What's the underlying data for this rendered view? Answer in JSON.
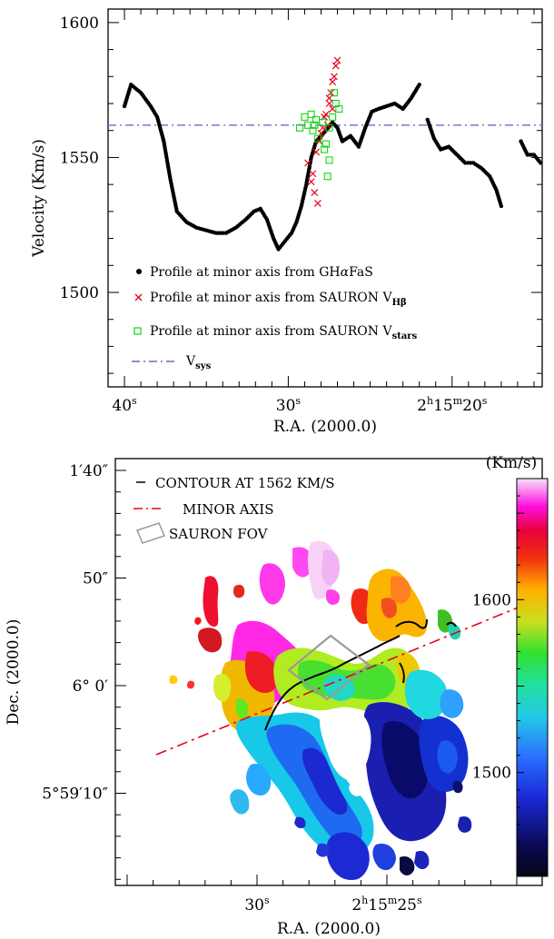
{
  "top_panel": {
    "xlabel": "R.A. (2000.0)",
    "ylabel": "Velocity (Km/s)",
    "legend": [
      {
        "text": "Profile at minor axis from GH",
        "greek": "α",
        "tail": "FaS",
        "color": "#000000",
        "marker": "dot",
        "sub": ""
      },
      {
        "text": "Profile at minor axis from SAURON V",
        "greek": "",
        "tail": "",
        "color": "#e8001c",
        "marker": "x",
        "sub": "Hβ"
      },
      {
        "text": "Profile at minor axis from SAURON V",
        "greek": "",
        "tail": "",
        "color": "#16d616",
        "marker": "square",
        "sub": "stars"
      },
      {
        "text": "V",
        "greek": "",
        "tail": "",
        "color": "#2222cc",
        "marker": "dashdot",
        "sub": "sys"
      }
    ]
  },
  "bottom_panel": {
    "xlabel": "R.A. (2000.0)",
    "ylabel": "Dec. (2000.0)",
    "legend": [
      {
        "text": "CONTOUR AT 1562 KM/S",
        "color": "#000000",
        "marker": "line"
      },
      {
        "text": "MINOR AXIS",
        "color": "#e8001c",
        "marker": "dashdot"
      },
      {
        "text": "SAURON FOV",
        "color": "#999999",
        "marker": "box"
      }
    ],
    "colorbar": {
      "title": "(Km/s)",
      "ticks": [
        "1600",
        "1500"
      ]
    },
    "xticks": [
      {
        "pos": 30,
        "label": "30",
        "sup": "s",
        "prefix": ""
      },
      {
        "pos": 25,
        "label": "25",
        "sup": "s",
        "prefix": "2h15m"
      }
    ],
    "yticks": [
      {
        "pos": 100,
        "label": "1′40″"
      },
      {
        "pos": 90,
        "label": "50″"
      },
      {
        "pos": 80,
        "label": "6° 0′"
      },
      {
        "pos": 70,
        "label": "5°59′10″"
      }
    ]
  },
  "chart_data": [
    {
      "type": "scatter",
      "title": "",
      "xlabel": "R.A. (2000.0)",
      "ylabel": "Velocity (Km/s)",
      "xlim": [
        41.0,
        14.5
      ],
      "ylim": [
        1465,
        1605
      ],
      "x_reversed": true,
      "xticks": [
        {
          "value": 40,
          "label": "40",
          "sup": "s",
          "prefix": ""
        },
        {
          "value": 30,
          "label": "30",
          "sup": "s",
          "prefix": ""
        },
        {
          "value": 20,
          "label": "20",
          "sup": "s",
          "prefix": "2h15m"
        }
      ],
      "yticks": [
        1500,
        1550,
        1600
      ],
      "vsys": 1562,
      "series": [
        {
          "name": "Profile at minor axis from GHαFaS",
          "color": "#000000",
          "marker": "dot",
          "segments": [
            [
              [
                40.0,
                1569
              ],
              [
                39.6,
                1577
              ],
              [
                39.0,
                1574
              ],
              [
                38.4,
                1569
              ],
              [
                38.0,
                1565
              ],
              [
                37.6,
                1556
              ],
              [
                37.2,
                1542
              ],
              [
                36.8,
                1530
              ],
              [
                36.2,
                1526
              ],
              [
                35.6,
                1524
              ],
              [
                35.0,
                1523
              ],
              [
                34.4,
                1522
              ],
              [
                33.8,
                1522
              ],
              [
                33.2,
                1524
              ],
              [
                32.6,
                1527
              ],
              [
                32.1,
                1530
              ],
              [
                31.7,
                1531
              ],
              [
                31.3,
                1527
              ],
              [
                30.9,
                1520
              ],
              [
                30.6,
                1516
              ],
              [
                30.2,
                1519
              ],
              [
                29.8,
                1522
              ],
              [
                29.5,
                1526
              ],
              [
                29.2,
                1532
              ],
              [
                28.9,
                1540
              ],
              [
                28.6,
                1550
              ],
              [
                28.3,
                1556
              ],
              [
                28.0,
                1558
              ],
              [
                27.7,
                1560
              ],
              [
                27.3,
                1563
              ],
              [
                27.0,
                1561
              ],
              [
                26.7,
                1556
              ],
              [
                26.2,
                1558
              ],
              [
                25.7,
                1554
              ],
              [
                25.3,
                1561
              ],
              [
                24.9,
                1567
              ],
              [
                24.5,
                1568
              ],
              [
                24.0,
                1569
              ],
              [
                23.5,
                1570
              ],
              [
                23.0,
                1568
              ],
              [
                22.5,
                1572
              ],
              [
                22.0,
                1577
              ]
            ],
            [
              [
                21.5,
                1564
              ],
              [
                21.1,
                1557
              ],
              [
                20.7,
                1553
              ],
              [
                20.2,
                1554
              ],
              [
                19.7,
                1551
              ],
              [
                19.2,
                1548
              ],
              [
                18.7,
                1548
              ],
              [
                18.2,
                1546
              ],
              [
                17.7,
                1543
              ],
              [
                17.3,
                1538
              ],
              [
                17.0,
                1532
              ]
            ],
            [
              [
                15.8,
                1556
              ],
              [
                15.4,
                1551
              ],
              [
                15.0,
                1551
              ],
              [
                14.6,
                1548
              ]
            ]
          ]
        },
        {
          "name": "Profile at minor axis from SAURON VHβ",
          "color": "#e8001c",
          "marker": "x",
          "points": [
            [
              28.8,
              1548
            ],
            [
              28.6,
              1541
            ],
            [
              28.4,
              1537
            ],
            [
              28.2,
              1533
            ],
            [
              28.5,
              1544
            ],
            [
              28.3,
              1552
            ],
            [
              28.1,
              1556
            ],
            [
              27.9,
              1561
            ],
            [
              27.7,
              1566
            ],
            [
              27.5,
              1570
            ],
            [
              27.4,
              1574
            ],
            [
              27.2,
              1580
            ],
            [
              27.1,
              1584
            ],
            [
              27.0,
              1586
            ],
            [
              27.3,
              1578
            ],
            [
              27.5,
              1572
            ],
            [
              27.6,
              1562
            ],
            [
              27.3,
              1568
            ],
            [
              28.0,
              1559
            ],
            [
              27.8,
              1565
            ]
          ]
        },
        {
          "name": "Profile at minor axis from SAURON Vstars",
          "color": "#16d616",
          "marker": "square",
          "points": [
            [
              29.3,
              1561
            ],
            [
              29.0,
              1565
            ],
            [
              28.8,
              1562
            ],
            [
              28.6,
              1566
            ],
            [
              28.5,
              1560
            ],
            [
              28.3,
              1564
            ],
            [
              28.2,
              1557
            ],
            [
              27.9,
              1563
            ],
            [
              27.7,
              1555
            ],
            [
              27.5,
              1561
            ],
            [
              27.3,
              1565
            ],
            [
              27.1,
              1570
            ],
            [
              26.9,
              1568
            ],
            [
              27.2,
              1574
            ],
            [
              27.5,
              1549
            ],
            [
              27.6,
              1543
            ],
            [
              27.8,
              1553
            ],
            [
              28.4,
              1562
            ]
          ]
        }
      ]
    },
    {
      "type": "heatmap",
      "title": "",
      "xlabel": "R.A. (2000.0)",
      "ylabel": "Dec. (2000.0)",
      "colorbar_range": [
        1440,
        1670
      ],
      "contour_level": 1562,
      "colorbar_title": "(Km/s)",
      "colorbar_ticks": [
        1500,
        1600
      ]
    }
  ]
}
